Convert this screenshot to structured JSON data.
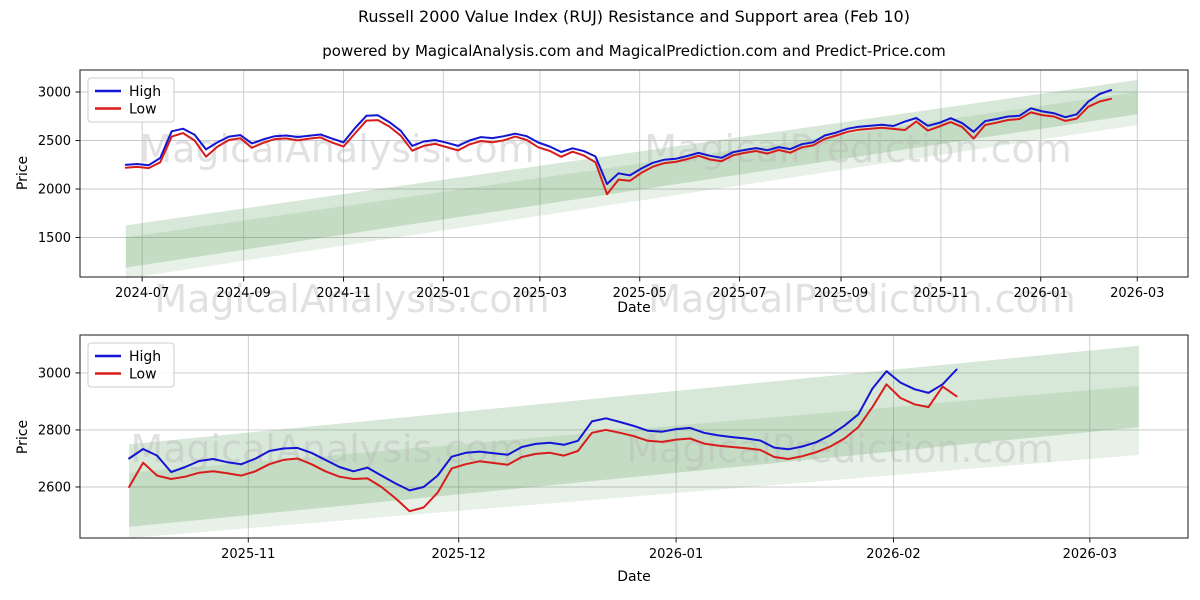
{
  "figure": {
    "title": "Russell 2000 Value Index (RUJ) Resistance and Support area (Feb 10)",
    "subtitle": "powered by MagicalAnalysis.com and MagicalPrediction.com and Predict-Price.com",
    "watermarks": [
      "MagicalAnalysis.com",
      "MagicalPrediction.com",
      "MagicalAnalysis.com",
      "MagicalPrediction.com",
      "MagicalAnalysis.com",
      "MagicalPrediction.com"
    ]
  },
  "colors": {
    "high_line": "#1414d4",
    "low_line": "#d81c1c",
    "band_green": "#3d8b3d",
    "grid": "#c9c9c9",
    "spine": "#1a1a1a",
    "legend_border": "#cccccc"
  },
  "chart_data": [
    {
      "type": "line",
      "name": "overview-chart",
      "xlabel": "Date",
      "ylabel": "Price",
      "xlim": [
        "2024-05-24",
        "2026-04-01"
      ],
      "ylim": [
        1093,
        3227
      ],
      "grid": true,
      "legend_position": "upper-left",
      "x_ticks": [
        {
          "date": "2024-07-01",
          "label": "2024-07"
        },
        {
          "date": "2024-09-01",
          "label": "2024-09"
        },
        {
          "date": "2024-11-01",
          "label": "2024-11"
        },
        {
          "date": "2025-01-01",
          "label": "2025-01"
        },
        {
          "date": "2025-03-01",
          "label": "2025-03"
        },
        {
          "date": "2025-05-01",
          "label": "2025-05"
        },
        {
          "date": "2025-07-01",
          "label": "2025-07"
        },
        {
          "date": "2025-09-01",
          "label": "2025-09"
        },
        {
          "date": "2025-11-01",
          "label": "2025-11"
        },
        {
          "date": "2026-01-01",
          "label": "2026-01"
        },
        {
          "date": "2026-03-01",
          "label": "2026-03"
        }
      ],
      "y_ticks": [
        1500,
        2000,
        2500,
        3000
      ],
      "legend": [
        {
          "label": "High",
          "color": "#1414d4"
        },
        {
          "label": "Low",
          "color": "#d81c1c"
        }
      ],
      "bands": [
        {
          "name": "resistance-band",
          "x_start": "2024-06-21",
          "x_end": "2026-03-01",
          "y_start": [
            1190,
            1625
          ],
          "y_end": [
            2770,
            3125
          ],
          "opacity": 0.2
        },
        {
          "name": "support-band",
          "x_start": "2024-06-21",
          "x_end": "2026-03-01",
          "y_start": [
            1075,
            1500
          ],
          "y_end": [
            2660,
            3000
          ],
          "opacity": 0.12
        }
      ],
      "series": [
        {
          "name": "High",
          "color": "#1414d4",
          "start": "2024-06-21",
          "step_days": 7,
          "values": [
            2250,
            2258,
            2246,
            2320,
            2595,
            2622,
            2560,
            2408,
            2482,
            2540,
            2556,
            2470,
            2512,
            2545,
            2552,
            2536,
            2550,
            2562,
            2520,
            2482,
            2628,
            2755,
            2760,
            2690,
            2600,
            2445,
            2490,
            2505,
            2478,
            2445,
            2500,
            2535,
            2525,
            2545,
            2570,
            2545,
            2480,
            2438,
            2382,
            2420,
            2390,
            2335,
            2052,
            2162,
            2140,
            2212,
            2270,
            2302,
            2312,
            2340,
            2372,
            2342,
            2322,
            2380,
            2402,
            2422,
            2400,
            2432,
            2412,
            2462,
            2482,
            2552,
            2582,
            2622,
            2642,
            2652,
            2662,
            2650,
            2695,
            2732,
            2652,
            2682,
            2730,
            2680,
            2590,
            2700,
            2722,
            2748,
            2755,
            2832,
            2800,
            2782,
            2740,
            2770,
            2900,
            2980,
            3020
          ]
        },
        {
          "name": "Low",
          "color": "#d81c1c",
          "start": "2024-06-21",
          "step_days": 7,
          "values": [
            2220,
            2228,
            2216,
            2275,
            2540,
            2577,
            2500,
            2333,
            2437,
            2505,
            2524,
            2425,
            2477,
            2515,
            2522,
            2501,
            2520,
            2532,
            2480,
            2437,
            2573,
            2705,
            2710,
            2645,
            2550,
            2395,
            2445,
            2465,
            2432,
            2398,
            2460,
            2495,
            2482,
            2502,
            2540,
            2505,
            2430,
            2393,
            2332,
            2385,
            2345,
            2275,
            1947,
            2097,
            2085,
            2167,
            2230,
            2267,
            2280,
            2308,
            2342,
            2304,
            2287,
            2348,
            2372,
            2392,
            2365,
            2402,
            2374,
            2430,
            2450,
            2517,
            2552,
            2590,
            2612,
            2622,
            2632,
            2620,
            2608,
            2697,
            2602,
            2645,
            2690,
            2640,
            2520,
            2660,
            2684,
            2712,
            2722,
            2790,
            2762,
            2748,
            2702,
            2726,
            2848,
            2902,
            2930
          ]
        }
      ]
    },
    {
      "type": "line",
      "name": "detail-chart",
      "xlabel": "Date",
      "ylabel": "Price",
      "xlim": [
        "2025-10-08",
        "2026-03-15"
      ],
      "ylim": [
        2421,
        3133
      ],
      "grid": true,
      "legend_position": "upper-left",
      "x_ticks": [
        {
          "date": "2025-11-01",
          "label": "2025-11"
        },
        {
          "date": "2025-12-01",
          "label": "2025-12"
        },
        {
          "date": "2026-01-01",
          "label": "2026-01"
        },
        {
          "date": "2026-02-01",
          "label": "2026-02"
        },
        {
          "date": "2026-03-01",
          "label": "2026-03"
        }
      ],
      "y_ticks": [
        2600,
        2800,
        3000
      ],
      "legend": [
        {
          "label": "High",
          "color": "#1414d4"
        },
        {
          "label": "Low",
          "color": "#d81c1c"
        }
      ],
      "bands": [
        {
          "name": "resistance-band",
          "x_start": "2025-10-15",
          "x_end": "2026-03-08",
          "y_start": [
            2460,
            2750
          ],
          "y_end": [
            2810,
            3095
          ],
          "opacity": 0.2
        },
        {
          "name": "support-band",
          "x_start": "2025-10-15",
          "x_end": "2026-03-08",
          "y_start": [
            2421,
            2650
          ],
          "y_end": [
            2712,
            2955
          ],
          "opacity": 0.12
        }
      ],
      "series": [
        {
          "name": "High",
          "color": "#1414d4",
          "start": "2025-10-15",
          "step_days": 2,
          "values": [
            2700,
            2733,
            2710,
            2652,
            2670,
            2691,
            2698,
            2687,
            2680,
            2699,
            2726,
            2735,
            2737,
            2720,
            2695,
            2670,
            2655,
            2668,
            2640,
            2612,
            2588,
            2600,
            2640,
            2706,
            2720,
            2724,
            2718,
            2713,
            2740,
            2751,
            2755,
            2748,
            2762,
            2830,
            2841,
            2828,
            2814,
            2797,
            2794,
            2803,
            2807,
            2790,
            2781,
            2775,
            2770,
            2763,
            2738,
            2732,
            2742,
            2757,
            2782,
            2815,
            2855,
            2945,
            3006,
            2966,
            2943,
            2930,
            2960,
            3012
          ]
        },
        {
          "name": "Low",
          "color": "#d81c1c",
          "start": "2025-10-15",
          "step_days": 2,
          "values": [
            2600,
            2685,
            2640,
            2628,
            2636,
            2650,
            2655,
            2648,
            2640,
            2655,
            2680,
            2695,
            2700,
            2680,
            2655,
            2636,
            2628,
            2630,
            2600,
            2560,
            2515,
            2528,
            2580,
            2665,
            2680,
            2690,
            2684,
            2678,
            2705,
            2716,
            2720,
            2710,
            2726,
            2790,
            2800,
            2790,
            2778,
            2762,
            2758,
            2766,
            2770,
            2752,
            2745,
            2740,
            2736,
            2730,
            2705,
            2698,
            2708,
            2722,
            2742,
            2770,
            2810,
            2880,
            2960,
            2912,
            2890,
            2880,
            2952,
            2918
          ]
        }
      ]
    }
  ]
}
